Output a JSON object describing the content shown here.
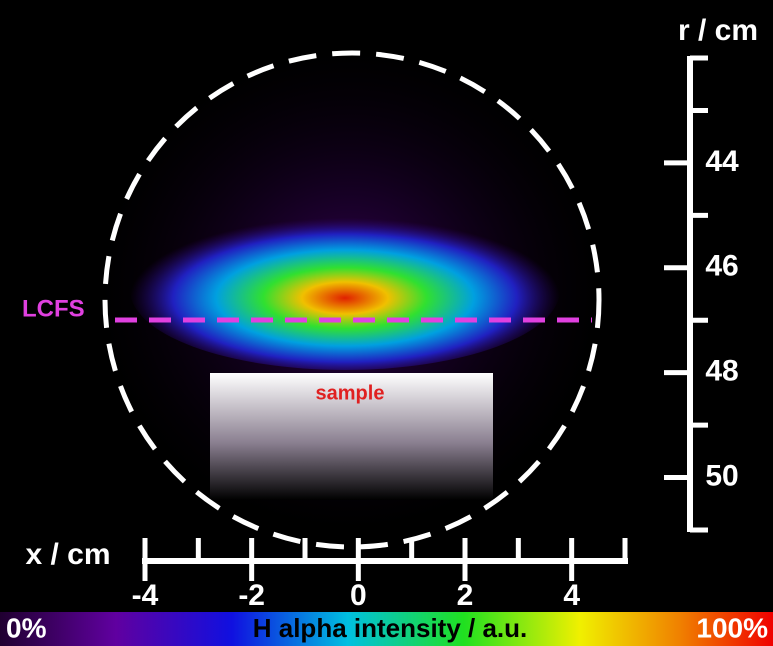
{
  "r_axis": {
    "label": "r / cm",
    "lim": [
      42,
      51
    ],
    "major_ticks": [
      44,
      46,
      48,
      50
    ],
    "minor_ticks": [
      42,
      43,
      45,
      47,
      49,
      51
    ]
  },
  "x_axis": {
    "label": "x / cm",
    "lim": [
      -4,
      5
    ],
    "major_ticks": [
      -4,
      -2,
      0,
      2,
      4
    ],
    "minor_ticks": [
      -3,
      -1,
      1,
      3,
      5
    ]
  },
  "annotations": {
    "lcfs": "LCFS",
    "sample": "sample"
  },
  "colorbar": {
    "min_label": "0%",
    "label": "H alpha intensity / a.u.",
    "max_label": "100%"
  }
}
